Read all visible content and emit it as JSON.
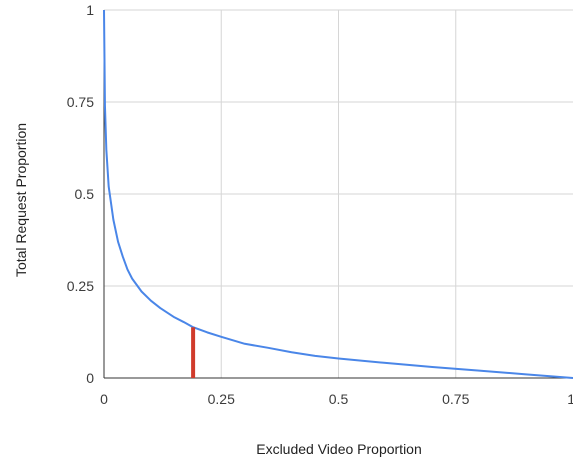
{
  "chart_data": {
    "type": "line",
    "title": "",
    "xlabel": "Excluded Video Proportion",
    "ylabel": "Total Request Proportion",
    "xlim": [
      0,
      1
    ],
    "ylim": [
      0,
      1
    ],
    "grid": true,
    "x_ticks": [
      {
        "value": 0,
        "label": "0"
      },
      {
        "value": 0.25,
        "label": "0.25"
      },
      {
        "value": 0.5,
        "label": "0.5"
      },
      {
        "value": 0.75,
        "label": "0.75"
      },
      {
        "value": 1,
        "label": "1"
      }
    ],
    "y_ticks": [
      {
        "value": 0,
        "label": "0"
      },
      {
        "value": 0.25,
        "label": "0.25"
      },
      {
        "value": 0.5,
        "label": "0.5"
      },
      {
        "value": 0.75,
        "label": "0.75"
      },
      {
        "value": 1,
        "label": "1"
      }
    ],
    "series": [
      {
        "color": "#4a86e8",
        "points": [
          [
            0,
            1.0
          ],
          [
            0.002,
            0.74
          ],
          [
            0.005,
            0.62
          ],
          [
            0.01,
            0.52
          ],
          [
            0.02,
            0.43
          ],
          [
            0.03,
            0.37
          ],
          [
            0.04,
            0.33
          ],
          [
            0.05,
            0.295
          ],
          [
            0.06,
            0.27
          ],
          [
            0.08,
            0.235
          ],
          [
            0.1,
            0.21
          ],
          [
            0.12,
            0.19
          ],
          [
            0.15,
            0.165
          ],
          [
            0.17,
            0.152
          ],
          [
            0.19,
            0.138
          ],
          [
            0.22,
            0.124
          ],
          [
            0.25,
            0.112
          ],
          [
            0.3,
            0.093
          ],
          [
            0.35,
            0.082
          ],
          [
            0.4,
            0.07
          ],
          [
            0.45,
            0.06
          ],
          [
            0.5,
            0.053
          ],
          [
            0.6,
            0.041
          ],
          [
            0.7,
            0.03
          ],
          [
            0.8,
            0.02
          ],
          [
            0.9,
            0.01
          ],
          [
            1.0,
            0.0
          ]
        ]
      }
    ],
    "marker": {
      "x": 0.19,
      "y_from": 0,
      "y_to": 0.138,
      "color": "#d03b2b"
    }
  }
}
